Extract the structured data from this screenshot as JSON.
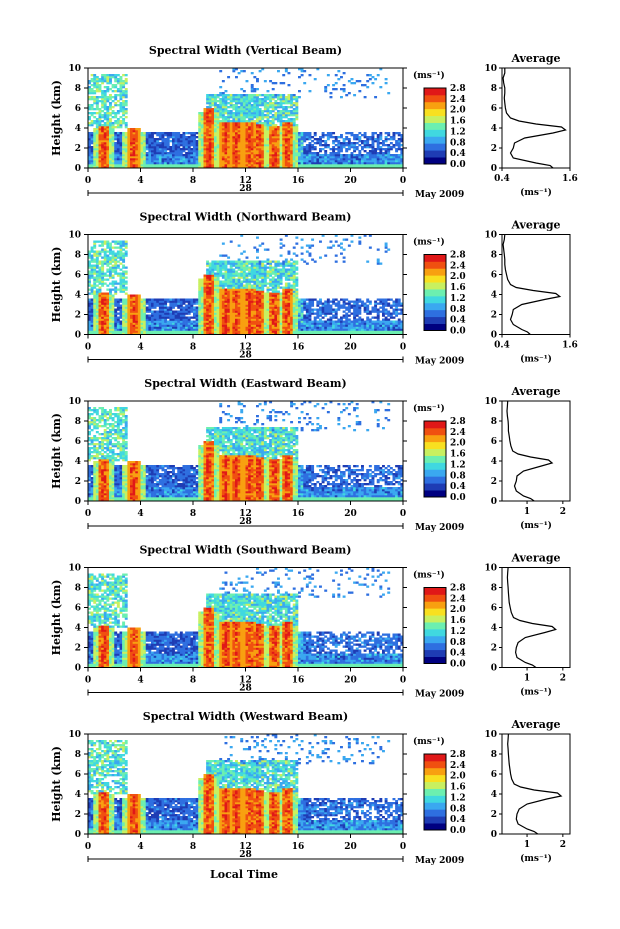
{
  "chart_data": {
    "type": "heatmap",
    "x_tick_labels": [
      "0",
      "4",
      "8",
      "12",
      "16",
      "20",
      "0"
    ],
    "xlim": [
      0,
      24
    ],
    "y_tick_labels": [
      "0",
      "2",
      "4",
      "6",
      "8",
      "10"
    ],
    "ylim": [
      0,
      10
    ],
    "ylabel": "Height (km)",
    "xlabel": "Local Time",
    "date_day": "28",
    "date_month": "May 2009",
    "colorbar": {
      "unit": "(ms⁻¹)",
      "tick_labels": [
        "0.0",
        "0.4",
        "0.8",
        "1.2",
        "1.6",
        "2.0",
        "2.4",
        "2.8"
      ],
      "range": [
        0.0,
        2.8
      ]
    },
    "average_panel": {
      "title": "Average",
      "xlabel": "(ms⁻¹)",
      "y_tick_labels": [
        "0",
        "2",
        "4",
        "6",
        "8",
        "10"
      ]
    },
    "panels": [
      {
        "title": "Spectral Width (Vertical Beam)",
        "avg_x_tick_labels": [
          "0.4",
          "1.6"
        ],
        "avg_xlim": [
          0.4,
          1.6
        ],
        "avg_profile": [
          [
            0,
            1.3
          ],
          [
            0.25,
            1.25
          ],
          [
            0.5,
            1.0
          ],
          [
            1,
            0.6
          ],
          [
            1.5,
            0.55
          ],
          [
            2,
            0.6
          ],
          [
            2.5,
            0.62
          ],
          [
            3,
            0.8
          ],
          [
            3.5,
            1.3
          ],
          [
            3.8,
            1.52
          ],
          [
            4.1,
            1.45
          ],
          [
            4.4,
            1.0
          ],
          [
            4.7,
            0.7
          ],
          [
            5,
            0.55
          ],
          [
            5.5,
            0.48
          ],
          [
            6,
            0.46
          ],
          [
            6.5,
            0.45
          ],
          [
            7,
            0.44
          ],
          [
            7.5,
            0.45
          ],
          [
            8,
            0.45
          ],
          [
            8.5,
            0.43
          ],
          [
            9,
            0.42
          ],
          [
            9.5,
            0.45
          ],
          [
            10,
            0.45
          ]
        ]
      },
      {
        "title": "Spectral Width (Northward Beam)",
        "avg_x_tick_labels": [
          "0.4",
          "1.6"
        ],
        "avg_xlim": [
          0.4,
          1.6
        ],
        "avg_profile": [
          [
            0,
            0.9
          ],
          [
            0.25,
            0.85
          ],
          [
            0.5,
            0.75
          ],
          [
            1,
            0.6
          ],
          [
            1.5,
            0.55
          ],
          [
            2,
            0.58
          ],
          [
            2.5,
            0.6
          ],
          [
            3,
            0.75
          ],
          [
            3.5,
            1.15
          ],
          [
            3.8,
            1.42
          ],
          [
            4.1,
            1.35
          ],
          [
            4.4,
            0.95
          ],
          [
            4.7,
            0.65
          ],
          [
            5,
            0.55
          ],
          [
            5.5,
            0.5
          ],
          [
            6,
            0.48
          ],
          [
            6.5,
            0.46
          ],
          [
            7,
            0.45
          ],
          [
            7.5,
            0.45
          ],
          [
            8,
            0.44
          ],
          [
            8.5,
            0.43
          ],
          [
            9,
            0.42
          ],
          [
            9.5,
            0.44
          ],
          [
            10,
            0.45
          ]
        ]
      },
      {
        "title": "Spectral Width (Eastward Beam)",
        "avg_x_tick_labels": [
          "1",
          "2"
        ],
        "avg_xlim": [
          0.3,
          2.2
        ],
        "avg_profile": [
          [
            0,
            1.2
          ],
          [
            0.25,
            1.1
          ],
          [
            0.5,
            0.9
          ],
          [
            1,
            0.7
          ],
          [
            1.5,
            0.65
          ],
          [
            2,
            0.7
          ],
          [
            2.5,
            0.72
          ],
          [
            3,
            0.9
          ],
          [
            3.5,
            1.4
          ],
          [
            3.8,
            1.7
          ],
          [
            4.1,
            1.6
          ],
          [
            4.4,
            1.1
          ],
          [
            4.7,
            0.75
          ],
          [
            5,
            0.6
          ],
          [
            5.5,
            0.55
          ],
          [
            6,
            0.52
          ],
          [
            6.5,
            0.5
          ],
          [
            7,
            0.48
          ],
          [
            7.5,
            0.48
          ],
          [
            8,
            0.47
          ],
          [
            8.5,
            0.45
          ],
          [
            9,
            0.44
          ],
          [
            9.5,
            0.45
          ],
          [
            10,
            0.46
          ]
        ]
      },
      {
        "title": "Spectral Width (Southward Beam)",
        "avg_x_tick_labels": [
          "1",
          "2"
        ],
        "avg_xlim": [
          0.3,
          2.2
        ],
        "avg_profile": [
          [
            0,
            1.25
          ],
          [
            0.25,
            1.15
          ],
          [
            0.5,
            0.95
          ],
          [
            1,
            0.72
          ],
          [
            1.5,
            0.68
          ],
          [
            2,
            0.7
          ],
          [
            2.5,
            0.75
          ],
          [
            3,
            0.95
          ],
          [
            3.5,
            1.5
          ],
          [
            3.8,
            1.8
          ],
          [
            4.1,
            1.7
          ],
          [
            4.4,
            1.15
          ],
          [
            4.7,
            0.8
          ],
          [
            5,
            0.62
          ],
          [
            5.5,
            0.56
          ],
          [
            6,
            0.53
          ],
          [
            6.5,
            0.5
          ],
          [
            7,
            0.49
          ],
          [
            7.5,
            0.48
          ],
          [
            8,
            0.47
          ],
          [
            8.5,
            0.46
          ],
          [
            9,
            0.45
          ],
          [
            9.5,
            0.46
          ],
          [
            10,
            0.47
          ]
        ]
      },
      {
        "title": "Spectral Width (Westward Beam)",
        "avg_x_tick_labels": [
          "1",
          "2"
        ],
        "avg_xlim": [
          0.3,
          2.2
        ],
        "avg_profile": [
          [
            0,
            1.3
          ],
          [
            0.25,
            1.2
          ],
          [
            0.5,
            1.0
          ],
          [
            1,
            0.75
          ],
          [
            1.5,
            0.7
          ],
          [
            2,
            0.72
          ],
          [
            2.5,
            0.78
          ],
          [
            3,
            1.0
          ],
          [
            3.5,
            1.55
          ],
          [
            3.8,
            1.95
          ],
          [
            4.1,
            1.85
          ],
          [
            4.4,
            1.2
          ],
          [
            4.7,
            0.82
          ],
          [
            5,
            0.64
          ],
          [
            5.5,
            0.57
          ],
          [
            6,
            0.54
          ],
          [
            6.5,
            0.52
          ],
          [
            7,
            0.5
          ],
          [
            7.5,
            0.49
          ],
          [
            8,
            0.48
          ],
          [
            8.5,
            0.47
          ],
          [
            9,
            0.46
          ],
          [
            9.5,
            0.47
          ],
          [
            10,
            0.48
          ]
        ]
      }
    ],
    "colors": [
      "#000080",
      "#1e3cb4",
      "#2e6fe0",
      "#3aa8f0",
      "#40d8e0",
      "#6cefb0",
      "#c8f060",
      "#f8e020",
      "#f8a010",
      "#f05010",
      "#e01818"
    ]
  }
}
